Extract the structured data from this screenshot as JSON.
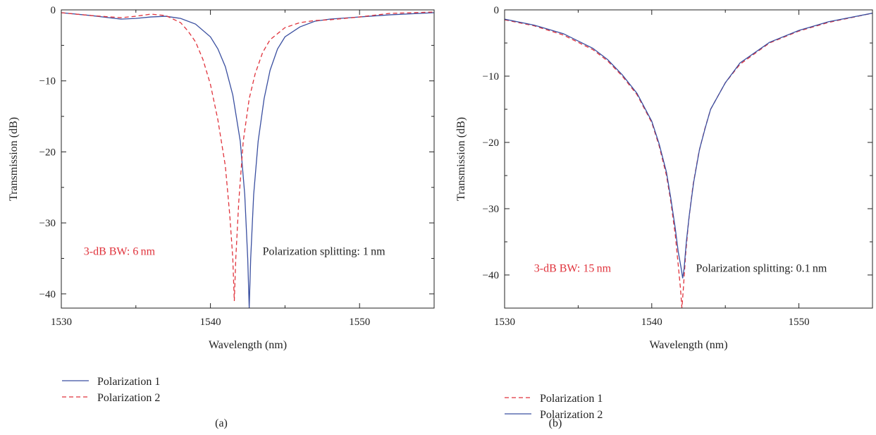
{
  "colors": {
    "blue": "#3a4fa0",
    "red": "#e0333c",
    "axis": "#222222"
  },
  "chart_data": [
    {
      "type": "line",
      "panel_label": "(a)",
      "xlabel": "Wavelength (nm)",
      "ylabel": "Transmission (dB)",
      "xlim": [
        1530,
        1555
      ],
      "ylim": [
        -42,
        0
      ],
      "xticks": [
        1530,
        1540,
        1550
      ],
      "yticks": [
        0,
        -10,
        -20,
        -30,
        -40
      ],
      "ytick_labels": [
        "0",
        "−10",
        "−20",
        "−30",
        "−40"
      ],
      "annotations": [
        {
          "text": "3-dB BW: 6 nm",
          "x": 1531.5,
          "y": -34,
          "color": "#e0333c"
        },
        {
          "text": "Polarization splitting: 1 nm",
          "x": 1543.5,
          "y": -34,
          "color": "#222222"
        }
      ],
      "series": [
        {
          "name": "Polarization 1",
          "style": "solid",
          "color": "#3a4fa0",
          "x": [
            1530,
            1532,
            1534,
            1535,
            1536,
            1537,
            1538,
            1539,
            1540,
            1540.5,
            1541,
            1541.5,
            1542,
            1542.3,
            1542.5,
            1542.6,
            1542.7,
            1542.9,
            1543.2,
            1543.6,
            1544,
            1544.5,
            1545,
            1546,
            1547,
            1548,
            1550,
            1552,
            1555
          ],
          "y": [
            -0.4,
            -0.8,
            -1.3,
            -1.2,
            -1.0,
            -0.9,
            -1.2,
            -2.0,
            -3.8,
            -5.5,
            -8.0,
            -12.0,
            -18.5,
            -26.0,
            -35.0,
            -42.0,
            -35.0,
            -26.0,
            -18.5,
            -12.5,
            -8.5,
            -5.5,
            -3.8,
            -2.4,
            -1.6,
            -1.3,
            -1.0,
            -0.7,
            -0.4
          ]
        },
        {
          "name": "Polarization 2",
          "style": "dashed",
          "color": "#e0333c",
          "x": [
            1530,
            1532,
            1534,
            1535,
            1536,
            1537,
            1538,
            1538.5,
            1539,
            1539.5,
            1540,
            1540.5,
            1541,
            1541.3,
            1541.5,
            1541.6,
            1541.7,
            1541.9,
            1542.2,
            1542.6,
            1543,
            1543.5,
            1544,
            1545,
            1546,
            1547,
            1548,
            1550,
            1552,
            1555
          ],
          "y": [
            -0.4,
            -0.8,
            -1.1,
            -0.9,
            -0.6,
            -0.8,
            -1.8,
            -3.0,
            -4.5,
            -7.0,
            -10.5,
            -15.5,
            -22.0,
            -29.0,
            -35.0,
            -41.0,
            -35.0,
            -27.0,
            -18.5,
            -12.5,
            -9.0,
            -6.0,
            -4.2,
            -2.5,
            -1.8,
            -1.5,
            -1.4,
            -1.0,
            -0.5,
            -0.3
          ]
        }
      ],
      "legend": {
        "placement": "bottom-left",
        "entries": [
          "Polarization 1",
          "Polarization 2"
        ]
      }
    },
    {
      "type": "line",
      "panel_label": "(b)",
      "xlabel": "Wavelength (nm)",
      "ylabel": "Transmission (dB)",
      "xlim": [
        1530,
        1555
      ],
      "ylim": [
        -45,
        0
      ],
      "xticks": [
        1530,
        1540,
        1550
      ],
      "yticks": [
        0,
        -10,
        -20,
        -30,
        -40
      ],
      "ytick_labels": [
        "0",
        "−10",
        "−20",
        "−30",
        "−40"
      ],
      "annotations": [
        {
          "text": "3-dB BW: 15 nm",
          "x": 1532,
          "y": -39,
          "color": "#e0333c"
        },
        {
          "text": "Polarization splitting: 0.1 nm",
          "x": 1543,
          "y": -39,
          "color": "#222222"
        }
      ],
      "series": [
        {
          "name": "Polarization 1",
          "style": "dashed",
          "color": "#e0333c",
          "x": [
            1530,
            1532,
            1534,
            1536,
            1537,
            1538,
            1539,
            1540,
            1540.5,
            1541,
            1541.3,
            1541.6,
            1541.8,
            1541.95,
            1542.05,
            1542.15,
            1542.3,
            1542.5,
            1542.8,
            1543.2,
            1543.6,
            1544,
            1545,
            1546,
            1548,
            1550,
            1552,
            1555
          ],
          "y": [
            -1.5,
            -2.4,
            -3.8,
            -6.0,
            -7.7,
            -10.0,
            -12.8,
            -17.0,
            -20.5,
            -25.0,
            -29.0,
            -34.0,
            -38.5,
            -42.0,
            -45.0,
            -42.0,
            -37.0,
            -32.0,
            -26.5,
            -21.5,
            -18.0,
            -15.0,
            -11.0,
            -8.2,
            -5.0,
            -3.2,
            -1.9,
            -0.5
          ]
        },
        {
          "name": "Polarization 2",
          "style": "solid",
          "color": "#3a4fa0",
          "x": [
            1530,
            1532,
            1534,
            1536,
            1537,
            1538,
            1539,
            1540,
            1540.5,
            1541,
            1541.3,
            1541.6,
            1541.8,
            1542,
            1542.1,
            1542.2,
            1542.35,
            1542.55,
            1542.85,
            1543.25,
            1543.65,
            1544,
            1545,
            1546,
            1548,
            1550,
            1552,
            1555
          ],
          "y": [
            -1.4,
            -2.3,
            -3.6,
            -5.8,
            -7.5,
            -9.8,
            -12.6,
            -16.8,
            -20.2,
            -24.5,
            -28.5,
            -33.0,
            -36.5,
            -39.0,
            -40.5,
            -39.0,
            -35.0,
            -31.0,
            -26.0,
            -21.0,
            -17.7,
            -15.0,
            -11.0,
            -8.0,
            -4.9,
            -3.1,
            -1.8,
            -0.5
          ]
        }
      ],
      "legend": {
        "placement": "bottom-left",
        "entries": [
          "Polarization 1",
          "Polarization 2"
        ]
      }
    }
  ]
}
